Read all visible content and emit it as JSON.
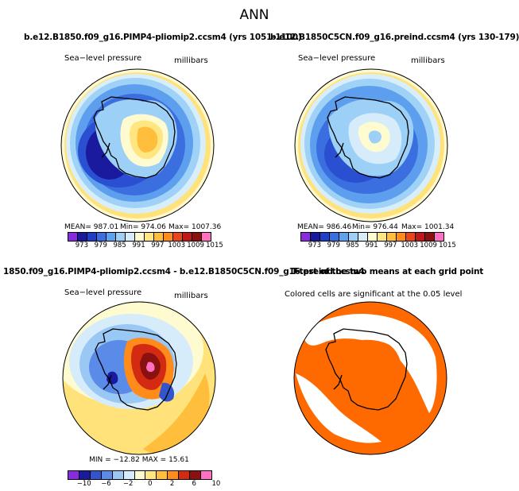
{
  "main_title": "ANN",
  "panels": [
    {
      "title": "b.e12.B1850.f09_g16.PIMP4-pliomip2.ccsm4 (yrs 1051-1100)",
      "left_label": "Sea−level pressure",
      "right_label": "millibars",
      "stats": {
        "mean": "MEAN= 987.01",
        "min": "Min= 974.06",
        "max": "Max= 1007.36"
      }
    },
    {
      "title": "b.e12.B1850C5CN.f09_g16.preind.ccsm4 (yrs 130-179)",
      "left_label": "Sea−level pressure",
      "right_label": "millibars",
      "stats": {
        "mean": "MEAN= 986.46",
        "min": "Min= 976.44",
        "max": "Max= 1001.34"
      }
    },
    {
      "title": "1850.f09_g16.PIMP4-pliomip2.ccsm4 - b.e12.B1850C5CN.f09_g16.preind.ccsm4",
      "left_label": "Sea−level pressure",
      "right_label": "millibars",
      "stats": {
        "minmax": "MIN = −12.82   MAX =  15.61"
      }
    },
    {
      "title": "T-test of the two means at each grid point",
      "caption": "Colored cells are significant at the 0.05 level"
    }
  ],
  "colorbar_abs": {
    "ticks": [
      "973",
      "979",
      "985",
      "991",
      "997",
      "1003",
      "1009",
      "1015"
    ],
    "colors": [
      "#8a2be2",
      "#1a1a9e",
      "#1e3fc8",
      "#3b6fe0",
      "#5fa0ef",
      "#9cd0f6",
      "#d6ecfb",
      "#fffbd0",
      "#ffe680",
      "#ffbe3c",
      "#ff8c1a",
      "#e8451a",
      "#c01818",
      "#8b1010",
      "#ff70c0"
    ]
  },
  "colorbar_diff": {
    "ticks": [
      "−10",
      "−6",
      "−2",
      "0",
      "2",
      "6",
      "10"
    ],
    "colors": [
      "#8a2be2",
      "#1a1a9e",
      "#3355cc",
      "#5a8be8",
      "#99c8f4",
      "#d4ecfb",
      "#fffbd0",
      "#ffe680",
      "#ffbe3c",
      "#ff8c1a",
      "#d42a12",
      "#8b1010",
      "#ff70c0"
    ]
  },
  "ttest_color": "#ff6a00"
}
